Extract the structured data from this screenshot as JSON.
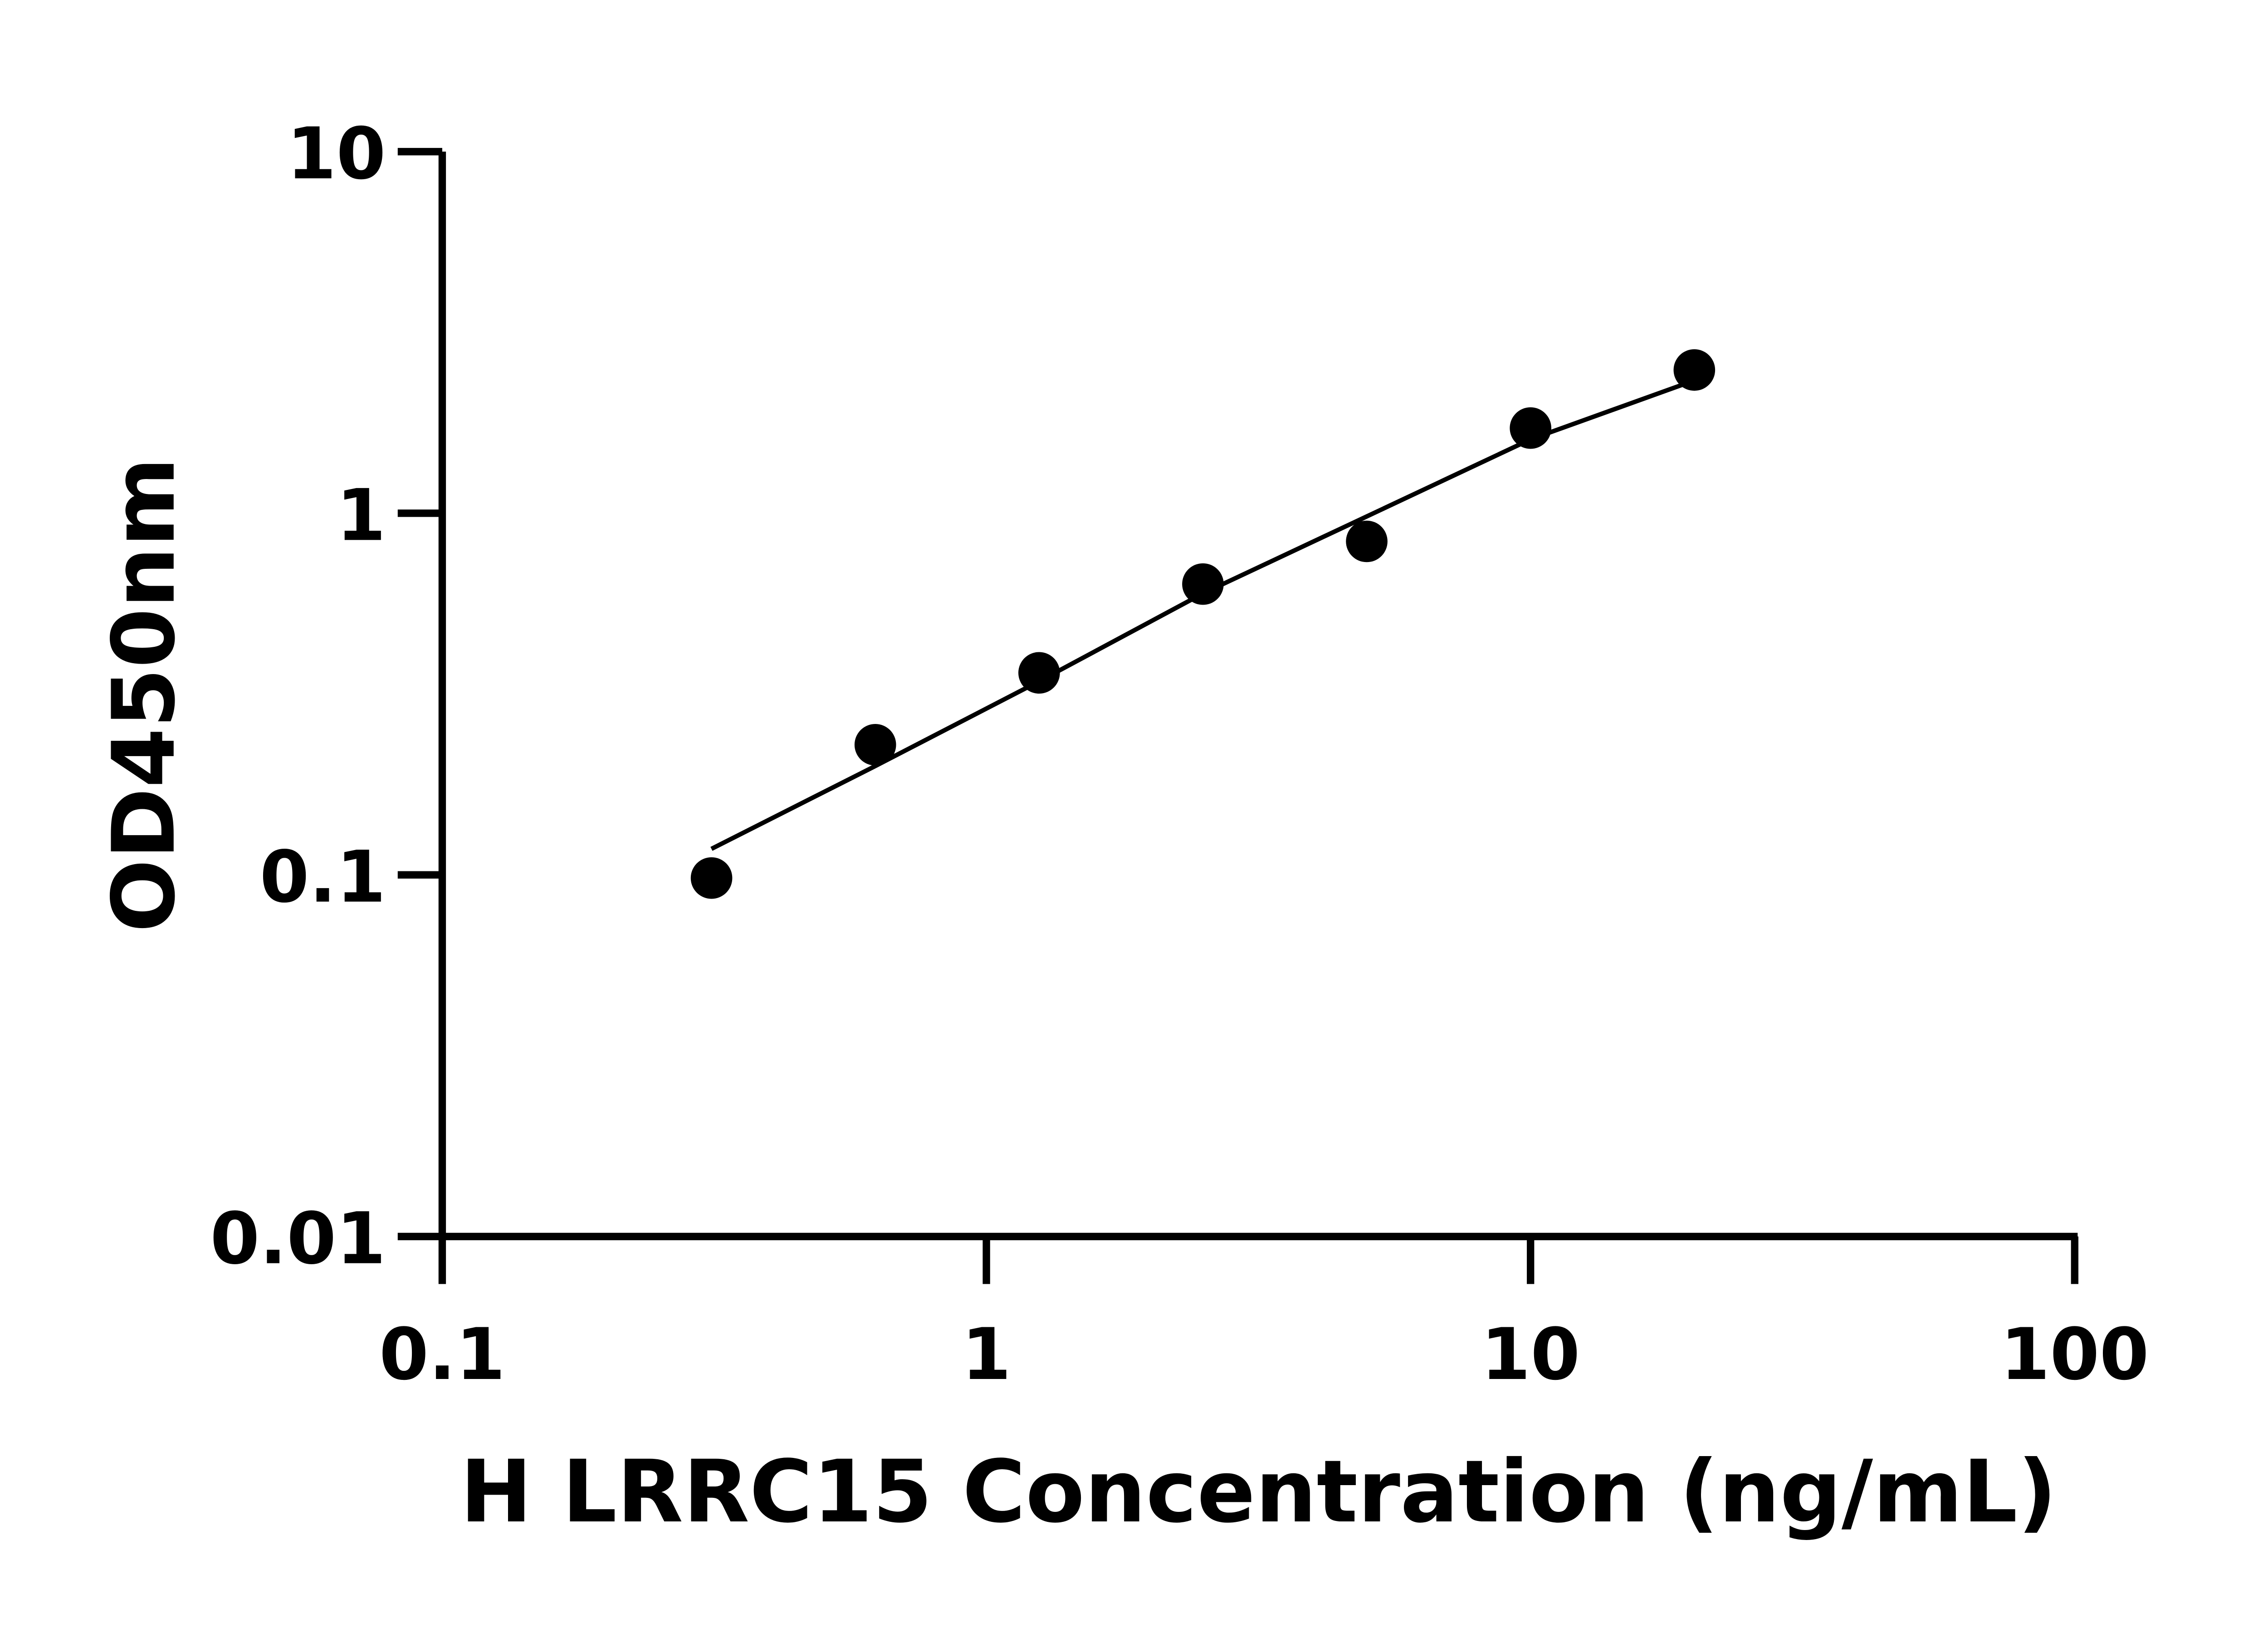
{
  "chart_data": {
    "type": "scatter",
    "title": "",
    "xlabel": "H LRRC15 Concentration (ng/mL)",
    "ylabel": "OD450nm",
    "x_scale": "log",
    "y_scale": "log",
    "xlim": [
      0.1,
      100
    ],
    "ylim": [
      0.01,
      10
    ],
    "x_ticks": [
      "0.1",
      "1",
      "10",
      "100"
    ],
    "y_ticks": [
      "0.01",
      "0.1",
      "1",
      "10"
    ],
    "grid": false,
    "legend": "none",
    "series": [
      {
        "type": "scatter",
        "x": [
          0.3125,
          0.625,
          1.25,
          2.5,
          5,
          10,
          20
        ],
        "y": [
          0.098,
          0.229,
          0.362,
          0.637,
          0.836,
          1.72,
          2.49
        ],
        "color": "#000000"
      },
      {
        "type": "line",
        "x": [
          0.3125,
          0.625,
          1.25,
          2.5,
          5,
          10,
          20
        ],
        "y": [
          0.118,
          0.2,
          0.343,
          0.6,
          0.98,
          1.6,
          2.33
        ],
        "color": "#000000"
      }
    ]
  }
}
